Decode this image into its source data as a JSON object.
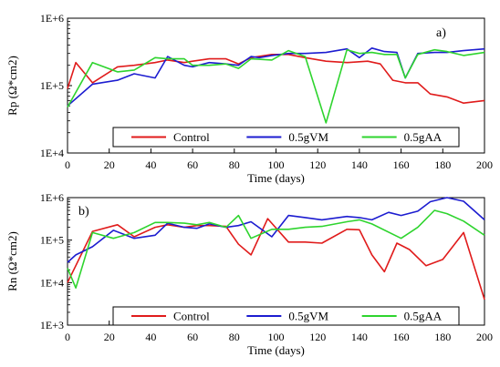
{
  "chart_data": [
    {
      "type": "line",
      "panel_label": "a)",
      "xlabel": "Time (days)",
      "ylabel": "Rp (Ω*cm2)",
      "yscale": "log",
      "xlim": [
        0,
        200
      ],
      "ylim": [
        10000,
        1000000
      ],
      "xticks": [
        "0",
        "20",
        "40",
        "60",
        "80",
        "100",
        "120",
        "140",
        "160",
        "180",
        "200"
      ],
      "yticks": [
        "1E+4",
        "1E+5",
        "1E+6"
      ],
      "grid": false,
      "legend_placement": "bottom-center",
      "series": [
        {
          "name": "Control",
          "color": "#e01b1b",
          "points": [
            [
              0,
              90000
            ],
            [
              4,
              220000
            ],
            [
              12,
              110000
            ],
            [
              24,
              190000
            ],
            [
              32,
              200000
            ],
            [
              42,
              220000
            ],
            [
              48,
              240000
            ],
            [
              56,
              220000
            ],
            [
              60,
              230000
            ],
            [
              68,
              250000
            ],
            [
              76,
              250000
            ],
            [
              82,
              210000
            ],
            [
              88,
              260000
            ],
            [
              98,
              290000
            ],
            [
              106,
              290000
            ],
            [
              114,
              260000
            ],
            [
              124,
              230000
            ],
            [
              134,
              220000
            ],
            [
              144,
              230000
            ],
            [
              150,
              210000
            ],
            [
              156,
              120000
            ],
            [
              162,
              110000
            ],
            [
              168,
              110000
            ],
            [
              174,
              75000
            ],
            [
              182,
              68000
            ],
            [
              190,
              55000
            ],
            [
              200,
              60000
            ]
          ]
        },
        {
          "name": "0.5gVM",
          "color": "#1c1cd0",
          "points": [
            [
              0,
              50000
            ],
            [
              12,
              105000
            ],
            [
              24,
              120000
            ],
            [
              32,
              150000
            ],
            [
              42,
              130000
            ],
            [
              48,
              270000
            ],
            [
              56,
              200000
            ],
            [
              60,
              190000
            ],
            [
              68,
              220000
            ],
            [
              76,
              210000
            ],
            [
              82,
              200000
            ],
            [
              88,
              270000
            ],
            [
              92,
              260000
            ],
            [
              98,
              280000
            ],
            [
              106,
              300000
            ],
            [
              114,
              300000
            ],
            [
              124,
              310000
            ],
            [
              134,
              350000
            ],
            [
              140,
              260000
            ],
            [
              146,
              360000
            ],
            [
              152,
              320000
            ],
            [
              158,
              310000
            ],
            [
              162,
              130000
            ],
            [
              168,
              300000
            ],
            [
              176,
              310000
            ],
            [
              182,
              310000
            ],
            [
              190,
              330000
            ],
            [
              200,
              350000
            ]
          ]
        },
        {
          "name": "0.5gAA",
          "color": "#2ed42e",
          "points": [
            [
              0,
              48000
            ],
            [
              12,
              220000
            ],
            [
              24,
              160000
            ],
            [
              32,
              170000
            ],
            [
              42,
              260000
            ],
            [
              48,
              250000
            ],
            [
              56,
              250000
            ],
            [
              60,
              200000
            ],
            [
              68,
              200000
            ],
            [
              76,
              210000
            ],
            [
              82,
              180000
            ],
            [
              88,
              250000
            ],
            [
              98,
              240000
            ],
            [
              106,
              330000
            ],
            [
              114,
              270000
            ],
            [
              124,
              28000
            ],
            [
              134,
              340000
            ],
            [
              140,
              300000
            ],
            [
              146,
              310000
            ],
            [
              152,
              290000
            ],
            [
              158,
              290000
            ],
            [
              162,
              130000
            ],
            [
              168,
              290000
            ],
            [
              176,
              340000
            ],
            [
              182,
              320000
            ],
            [
              190,
              280000
            ],
            [
              200,
              310000
            ]
          ]
        }
      ]
    },
    {
      "type": "line",
      "panel_label": "b)",
      "xlabel": "Time (days)",
      "ylabel": "Rn (Ω*cm2)",
      "yscale": "log",
      "xlim": [
        0,
        200
      ],
      "ylim": [
        1000,
        1000000
      ],
      "xticks": [
        "0",
        "20",
        "40",
        "60",
        "80",
        "100",
        "120",
        "140",
        "160",
        "180",
        "200"
      ],
      "yticks": [
        "1E+3",
        "1E+4",
        "1E+5",
        "1E+6"
      ],
      "grid": false,
      "legend_placement": "bottom-center",
      "series": [
        {
          "name": "Control",
          "color": "#e01b1b",
          "points": [
            [
              0,
              10000
            ],
            [
              12,
              160000
            ],
            [
              24,
              230000
            ],
            [
              32,
              120000
            ],
            [
              42,
              200000
            ],
            [
              48,
              230000
            ],
            [
              56,
              200000
            ],
            [
              62,
              220000
            ],
            [
              68,
              220000
            ],
            [
              76,
              210000
            ],
            [
              82,
              80000
            ],
            [
              88,
              45000
            ],
            [
              96,
              320000
            ],
            [
              106,
              90000
            ],
            [
              114,
              90000
            ],
            [
              122,
              85000
            ],
            [
              134,
              180000
            ],
            [
              140,
              175000
            ],
            [
              146,
              45000
            ],
            [
              152,
              18000
            ],
            [
              158,
              85000
            ],
            [
              164,
              60000
            ],
            [
              172,
              25000
            ],
            [
              180,
              35000
            ],
            [
              190,
              150000
            ],
            [
              200,
              4000
            ]
          ]
        },
        {
          "name": "0.5gVM",
          "color": "#1c1cd0",
          "points": [
            [
              0,
              30000
            ],
            [
              4,
              45000
            ],
            [
              12,
              70000
            ],
            [
              22,
              170000
            ],
            [
              32,
              110000
            ],
            [
              42,
              130000
            ],
            [
              48,
              250000
            ],
            [
              56,
              200000
            ],
            [
              62,
              190000
            ],
            [
              68,
              240000
            ],
            [
              76,
              200000
            ],
            [
              82,
              220000
            ],
            [
              88,
              270000
            ],
            [
              98,
              120000
            ],
            [
              106,
              380000
            ],
            [
              114,
              340000
            ],
            [
              122,
              300000
            ],
            [
              134,
              360000
            ],
            [
              140,
              340000
            ],
            [
              146,
              300000
            ],
            [
              154,
              450000
            ],
            [
              160,
              380000
            ],
            [
              168,
              480000
            ],
            [
              174,
              800000
            ],
            [
              182,
              1000000
            ],
            [
              190,
              820000
            ],
            [
              200,
              300000
            ]
          ]
        },
        {
          "name": "0.5gAA",
          "color": "#2ed42e",
          "points": [
            [
              0,
              22000
            ],
            [
              4,
              7500
            ],
            [
              12,
              150000
            ],
            [
              22,
              110000
            ],
            [
              32,
              150000
            ],
            [
              42,
              260000
            ],
            [
              48,
              260000
            ],
            [
              56,
              250000
            ],
            [
              62,
              230000
            ],
            [
              68,
              260000
            ],
            [
              76,
              200000
            ],
            [
              82,
              380000
            ],
            [
              88,
              110000
            ],
            [
              98,
              180000
            ],
            [
              106,
              180000
            ],
            [
              114,
              200000
            ],
            [
              122,
              210000
            ],
            [
              134,
              270000
            ],
            [
              140,
              300000
            ],
            [
              146,
              240000
            ],
            [
              160,
              110000
            ],
            [
              168,
              200000
            ],
            [
              176,
              500000
            ],
            [
              182,
              420000
            ],
            [
              190,
              280000
            ],
            [
              200,
              130000
            ]
          ]
        }
      ]
    }
  ]
}
